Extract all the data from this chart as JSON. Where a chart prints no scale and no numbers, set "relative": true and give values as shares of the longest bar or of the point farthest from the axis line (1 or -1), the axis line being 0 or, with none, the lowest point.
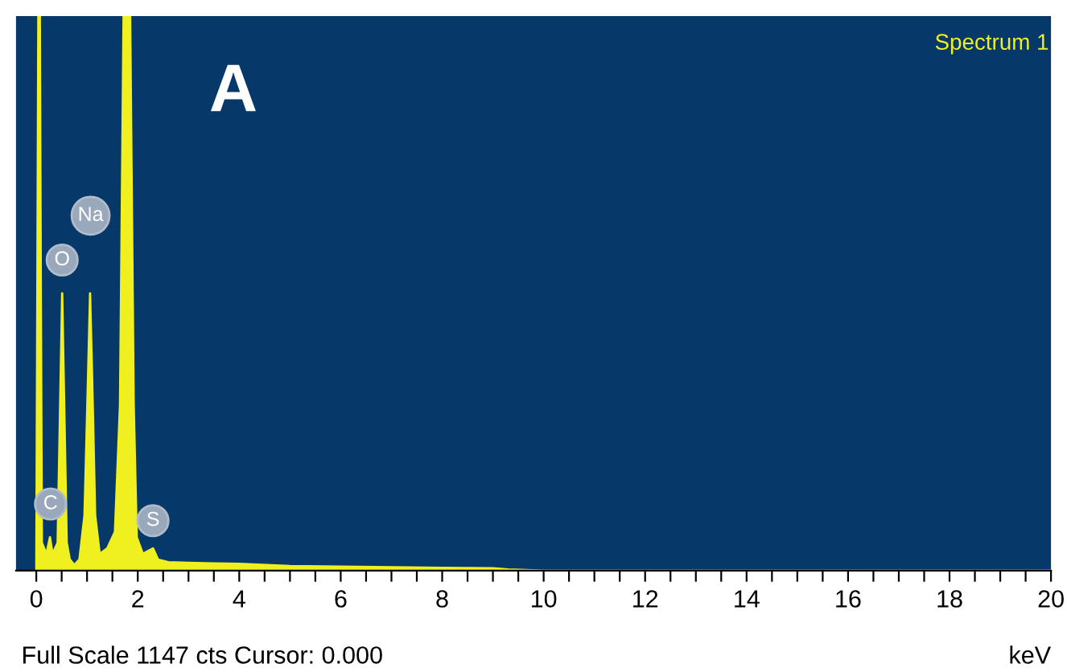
{
  "chart_data": {
    "type": "area",
    "relative": true,
    "xlabel": "keV",
    "x": [
      0.0,
      0.02,
      0.04,
      0.07,
      0.09,
      0.11,
      0.2,
      0.27,
      0.32,
      0.42,
      0.47,
      0.51,
      0.55,
      0.6,
      0.66,
      0.75,
      0.85,
      0.95,
      1.02,
      1.06,
      1.1,
      1.16,
      1.25,
      1.4,
      1.55,
      1.65,
      1.72,
      1.85,
      1.92,
      1.98,
      2.1,
      2.3,
      2.4,
      2.6,
      3,
      3.5,
      4,
      5,
      6,
      7,
      8,
      9,
      9.3,
      10,
      20
    ],
    "series": [
      {
        "color": "#f0f020",
        "values": [
          0,
          0.5,
          1,
          1,
          0.5,
          0.05,
          0.03,
          0.06,
          0.03,
          0.05,
          0.3,
          0.5,
          0.3,
          0.05,
          0.02,
          0.01,
          0.02,
          0.1,
          0.35,
          0.5,
          0.35,
          0.1,
          0.03,
          0.04,
          0.07,
          0.3,
          1,
          1,
          0.3,
          0.06,
          0.03,
          0.04,
          0.02,
          0.015,
          0.014,
          0.013,
          0.012,
          0.008,
          0.007,
          0.006,
          0.005,
          0.004,
          0.002,
          0,
          0
        ]
      }
    ],
    "xlim": [
      -0.4,
      20
    ],
    "xticks": [
      0,
      {
        "value": 0.5,
        "label": null
      },
      {
        "value": 1,
        "label": null
      },
      {
        "value": 1.5,
        "label": null
      },
      2,
      {
        "value": 2.5,
        "label": null
      },
      {
        "value": 3,
        "label": null
      },
      {
        "value": 3.5,
        "label": null
      },
      4,
      {
        "value": 4.5,
        "label": null
      },
      {
        "value": 5,
        "label": null
      },
      {
        "value": 5.5,
        "label": null
      },
      6,
      {
        "value": 6.5,
        "label": null
      },
      {
        "value": 7,
        "label": null
      },
      {
        "value": 7.5,
        "label": null
      },
      8,
      {
        "value": 8.5,
        "label": null
      },
      {
        "value": 9,
        "label": null
      },
      {
        "value": 9.5,
        "label": null
      },
      10,
      {
        "value": 10.5,
        "label": null
      },
      {
        "value": 11,
        "label": null
      },
      {
        "value": 11.5,
        "label": null
      },
      12,
      {
        "value": 12.5,
        "label": null
      },
      {
        "value": 13,
        "label": null
      },
      {
        "value": 13.5,
        "label": null
      },
      14,
      {
        "value": 14.5,
        "label": null
      },
      {
        "value": 15,
        "label": null
      },
      {
        "value": 15.5,
        "label": null
      },
      16,
      {
        "value": 16.5,
        "label": null
      },
      {
        "value": 17,
        "label": null
      },
      {
        "value": 17.5,
        "label": null
      },
      18,
      {
        "value": 18.5,
        "label": null
      },
      {
        "value": 19,
        "label": null
      },
      {
        "value": 19.5,
        "label": null
      },
      20
    ],
    "annotations": [
      "A",
      "Spectrum 1",
      "Full Scale 1147 cts Cursor: 0.000",
      {
        "text": "C",
        "x": 0.28,
        "y": 0.12
      },
      {
        "text": "O",
        "x": 0.51,
        "y": 0.56
      },
      {
        "text": "Na",
        "x": 1.07,
        "y": 0.64
      },
      {
        "text": "S",
        "x": 2.3,
        "y": 0.09
      }
    ],
    "grid": false,
    "legend": false
  }
}
